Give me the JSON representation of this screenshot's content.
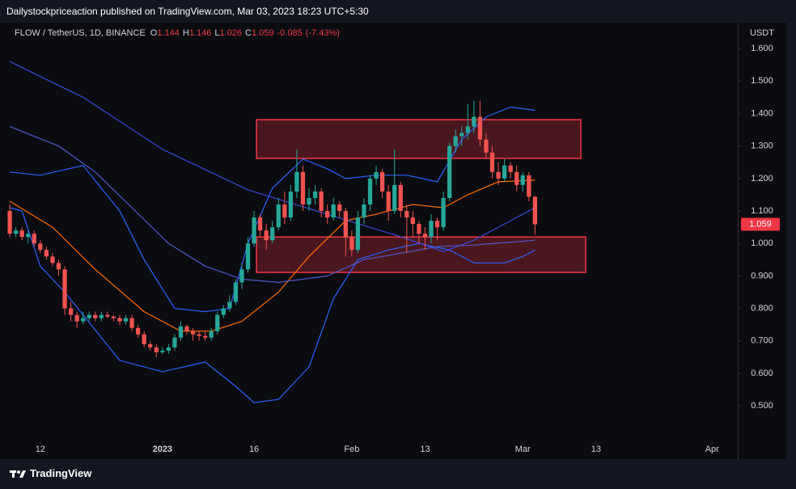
{
  "chart_data": {
    "type": "candlestick",
    "header": "Dailystockpriceaction published on TradingView.com, Mar 03, 2023 18:23 UTC+5:30",
    "symbol": "FLOW / TetherUS, 1D, BINANCE",
    "ohlc_letters": [
      "O",
      "H",
      "L",
      "C"
    ],
    "change": -0.085,
    "change_pct": {
      "value": -7.43,
      "label": "(-7.43%)"
    },
    "currency": "USDT",
    "footer": "TradingView",
    "up_color": "#26a69a",
    "down_color": "#ef5350",
    "grid": false,
    "xlim": [
      -1.6,
      119.2
    ],
    "ylim": [
      0.336,
      1.68
    ],
    "xticks": [
      {
        "value": 5,
        "label": "12"
      },
      {
        "value": 25,
        "label": "2023"
      },
      {
        "value": 40,
        "label": "16"
      },
      {
        "value": 56,
        "label": "Feb"
      },
      {
        "value": 68,
        "label": "13"
      },
      {
        "value": 84,
        "label": "Mar"
      },
      {
        "value": 96,
        "label": "13"
      },
      {
        "value": 115,
        "label": "Apr"
      }
    ],
    "yticks": [
      {
        "value": 0.5,
        "label": "0.500"
      },
      {
        "value": 0.6,
        "label": "0.600"
      },
      {
        "value": 0.7,
        "label": "0.700"
      },
      {
        "value": 0.8,
        "label": "0.800"
      },
      {
        "value": 0.9,
        "label": "0.900"
      },
      {
        "value": 1.0,
        "label": "1.000"
      },
      {
        "value": 1.1,
        "label": "1.100"
      },
      {
        "value": 1.2,
        "label": "1.200"
      },
      {
        "value": 1.3,
        "label": "1.300"
      },
      {
        "value": 1.4,
        "label": "1.400"
      },
      {
        "value": 1.5,
        "label": "1.500"
      },
      {
        "value": 1.6,
        "label": "1.600"
      }
    ],
    "x": [
      0,
      1,
      2,
      3,
      4,
      5,
      6,
      7,
      8,
      9,
      10,
      11,
      12,
      13,
      14,
      15,
      16,
      17,
      18,
      19,
      20,
      21,
      22,
      23,
      24,
      25,
      26,
      27,
      28,
      29,
      30,
      31,
      32,
      33,
      34,
      35,
      36,
      37,
      38,
      39,
      40,
      41,
      42,
      43,
      44,
      45,
      46,
      47,
      48,
      49,
      50,
      51,
      52,
      53,
      54,
      55,
      56,
      57,
      58,
      59,
      60,
      61,
      62,
      63,
      64,
      65,
      66,
      67,
      68,
      69,
      70,
      71,
      72,
      73,
      74,
      75,
      76,
      77,
      78,
      79,
      80,
      81,
      82,
      83,
      84,
      85,
      86
    ],
    "open": [
      1.1,
      1.03,
      1.04,
      1.02,
      1.03,
      1.0,
      0.98,
      0.96,
      0.94,
      0.92,
      0.8,
      0.78,
      0.76,
      0.77,
      0.78,
      0.77,
      0.78,
      0.775,
      0.77,
      0.76,
      0.77,
      0.74,
      0.72,
      0.69,
      0.68,
      0.665,
      0.67,
      0.68,
      0.71,
      0.745,
      0.73,
      0.72,
      0.715,
      0.71,
      0.73,
      0.78,
      0.8,
      0.82,
      0.88,
      0.92,
      1.0,
      1.08,
      1.04,
      1.01,
      1.05,
      1.12,
      1.08,
      1.16,
      1.22,
      1.12,
      1.14,
      1.16,
      1.1,
      1.08,
      1.12,
      1.1,
      1.02,
      0.98,
      1.08,
      1.12,
      1.2,
      1.22,
      1.16,
      1.1,
      1.18,
      1.1,
      1.08,
      1.06,
      1.03,
      1.02,
      1.07,
      1.05,
      1.14,
      1.3,
      1.33,
      1.34,
      1.36,
      1.39,
      1.32,
      1.28,
      1.22,
      1.2,
      1.24,
      1.22,
      1.18,
      1.21,
      1.144
    ],
    "high": [
      1.12,
      1.05,
      1.05,
      1.04,
      1.04,
      1.01,
      0.99,
      0.97,
      0.95,
      0.93,
      0.82,
      0.79,
      0.79,
      0.79,
      0.79,
      0.79,
      0.79,
      0.78,
      0.78,
      0.78,
      0.78,
      0.75,
      0.73,
      0.7,
      0.69,
      0.68,
      0.69,
      0.72,
      0.76,
      0.75,
      0.74,
      0.73,
      0.73,
      0.74,
      0.79,
      0.81,
      0.84,
      0.89,
      0.94,
      1.02,
      1.1,
      1.09,
      1.06,
      1.07,
      1.14,
      1.16,
      1.18,
      1.29,
      1.24,
      1.17,
      1.18,
      1.17,
      1.12,
      1.14,
      1.13,
      1.11,
      1.04,
      1.1,
      1.14,
      1.21,
      1.24,
      1.23,
      1.18,
      1.29,
      1.19,
      1.12,
      1.1,
      1.07,
      1.05,
      1.09,
      1.08,
      1.16,
      1.31,
      1.35,
      1.36,
      1.43,
      1.44,
      1.44,
      1.34,
      1.3,
      1.25,
      1.26,
      1.25,
      1.24,
      1.22,
      1.22,
      1.146
    ],
    "low": [
      1.02,
      1.02,
      1.01,
      1.0,
      0.99,
      0.97,
      0.95,
      0.93,
      0.9,
      0.78,
      0.76,
      0.74,
      0.75,
      0.76,
      0.76,
      0.76,
      0.77,
      0.76,
      0.75,
      0.75,
      0.73,
      0.71,
      0.68,
      0.67,
      0.65,
      0.66,
      0.66,
      0.67,
      0.7,
      0.72,
      0.7,
      0.7,
      0.7,
      0.7,
      0.72,
      0.77,
      0.79,
      0.81,
      0.86,
      0.91,
      0.99,
      1.02,
      0.98,
      1.0,
      1.04,
      1.06,
      1.07,
      1.14,
      1.1,
      1.1,
      1.12,
      1.08,
      1.06,
      1.07,
      1.08,
      0.96,
      0.96,
      0.97,
      1.06,
      1.1,
      1.18,
      1.14,
      1.07,
      1.09,
      1.08,
      0.97,
      1.02,
      1.0,
      0.98,
      1.0,
      1.01,
      1.04,
      1.13,
      1.28,
      1.3,
      1.32,
      1.34,
      1.3,
      1.26,
      1.2,
      1.18,
      1.19,
      1.2,
      1.16,
      1.16,
      1.13,
      1.026
    ],
    "close": [
      1.03,
      1.04,
      1.02,
      1.03,
      1.0,
      0.98,
      0.96,
      0.94,
      0.92,
      0.8,
      0.78,
      0.76,
      0.77,
      0.78,
      0.77,
      0.78,
      0.775,
      0.77,
      0.76,
      0.77,
      0.74,
      0.72,
      0.69,
      0.68,
      0.665,
      0.67,
      0.68,
      0.71,
      0.745,
      0.73,
      0.72,
      0.715,
      0.71,
      0.73,
      0.78,
      0.8,
      0.82,
      0.88,
      0.92,
      1.0,
      1.08,
      1.04,
      1.01,
      1.05,
      1.12,
      1.08,
      1.16,
      1.22,
      1.12,
      1.14,
      1.16,
      1.1,
      1.08,
      1.12,
      1.1,
      1.02,
      0.98,
      1.08,
      1.12,
      1.2,
      1.22,
      1.16,
      1.1,
      1.18,
      1.1,
      1.08,
      1.06,
      1.03,
      1.02,
      1.07,
      1.05,
      1.14,
      1.3,
      1.33,
      1.34,
      1.36,
      1.39,
      1.32,
      1.28,
      1.22,
      1.2,
      1.24,
      1.22,
      1.18,
      1.21,
      1.144,
      1.059
    ],
    "lines": [
      {
        "color": "#2962ff",
        "x": [
          0,
          5,
          12,
          18,
          22,
          27,
          32,
          36,
          39,
          43,
          48,
          52,
          55,
          60,
          65,
          70,
          74,
          78,
          82,
          86
        ],
        "values": [
          1.22,
          1.21,
          1.24,
          1.1,
          0.95,
          0.8,
          0.79,
          0.8,
          1.0,
          1.17,
          1.26,
          1.23,
          1.2,
          1.21,
          1.21,
          1.19,
          1.32,
          1.39,
          1.42,
          1.41
        ]
      },
      {
        "color": "#2962ff",
        "x": [
          0,
          2,
          5,
          9,
          12,
          18,
          25,
          32,
          37,
          40,
          44,
          49,
          53,
          57,
          62,
          67,
          72,
          76,
          81,
          84,
          86
        ],
        "values": [
          1.11,
          1.1,
          0.93,
          0.85,
          0.78,
          0.64,
          0.605,
          0.635,
          0.56,
          0.51,
          0.52,
          0.62,
          0.83,
          0.95,
          0.98,
          1.0,
          0.98,
          0.94,
          0.94,
          0.96,
          0.98
        ]
      },
      {
        "color": "#ff6d00",
        "x": [
          0,
          7,
          14,
          22,
          28,
          33,
          38,
          44,
          49,
          55,
          60,
          66,
          71,
          75,
          80,
          86
        ],
        "values": [
          1.13,
          1.05,
          0.92,
          0.79,
          0.73,
          0.73,
          0.76,
          0.85,
          0.96,
          1.07,
          1.09,
          1.12,
          1.11,
          1.15,
          1.19,
          1.195
        ]
      },
      {
        "color": "#3949d6",
        "x": [
          0,
          12,
          25,
          39,
          52,
          65,
          71,
          76,
          81,
          86
        ],
        "values": [
          1.56,
          1.45,
          1.29,
          1.165,
          1.09,
          1.015,
          0.975,
          1.01,
          1.06,
          1.11
        ]
      },
      {
        "color": "#4e5ad0",
        "x": [
          0,
          8,
          14,
          20,
          26,
          32,
          38,
          44,
          52,
          58,
          64,
          70,
          76,
          86
        ],
        "values": [
          1.36,
          1.3,
          1.22,
          1.11,
          1.0,
          0.93,
          0.89,
          0.88,
          0.9,
          0.95,
          0.97,
          0.99,
          0.995,
          1.01
        ]
      }
    ],
    "zones": [
      {
        "color": "#f23645",
        "xrange": [
          40.4,
          93.5
        ],
        "yrange": [
          1.262,
          1.381
        ]
      },
      {
        "color": "#f23645",
        "xrange": [
          40.4,
          94.3
        ],
        "yrange": [
          0.911,
          1.02
        ]
      }
    ]
  }
}
